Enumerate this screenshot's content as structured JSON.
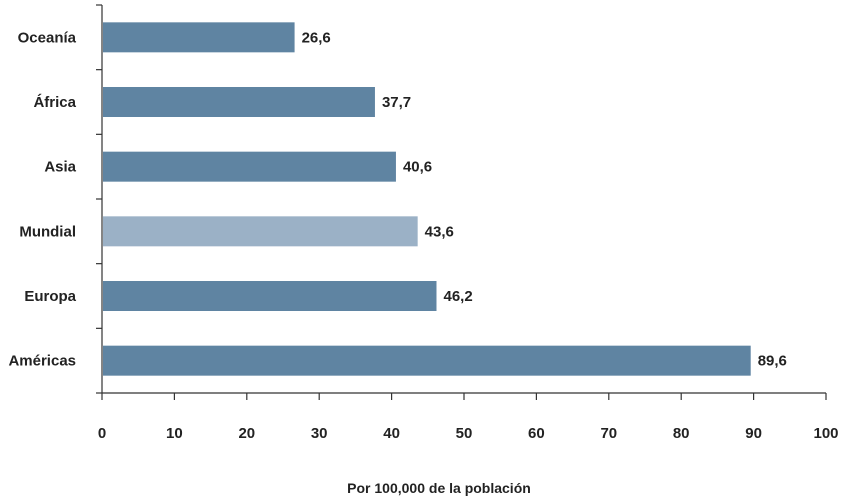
{
  "chart_data": {
    "type": "bar",
    "orientation": "horizontal",
    "categories": [
      "Oceanía",
      "África",
      "Asia",
      "Mundial",
      "Europa",
      "Américas"
    ],
    "values": [
      26.6,
      37.7,
      40.6,
      43.6,
      46.2,
      89.6
    ],
    "value_labels": [
      "26,6",
      "37,7",
      "40,6",
      "43,6",
      "46,2",
      "89,6"
    ],
    "highlight": "Mundial",
    "xlabel": "Por 100,000 de la población",
    "ylabel": "",
    "xlim": [
      0,
      100
    ],
    "xticks": [
      0,
      10,
      20,
      30,
      40,
      50,
      60,
      70,
      80,
      90,
      100
    ],
    "xtick_labels": [
      "0",
      "10",
      "20",
      "30",
      "40",
      "50",
      "60",
      "70",
      "80",
      "90",
      "100"
    ],
    "grid": false,
    "colors": {
      "bar": "#5f84a2",
      "highlight_bar": "#9bb1c6",
      "axis": "#333333"
    }
  }
}
